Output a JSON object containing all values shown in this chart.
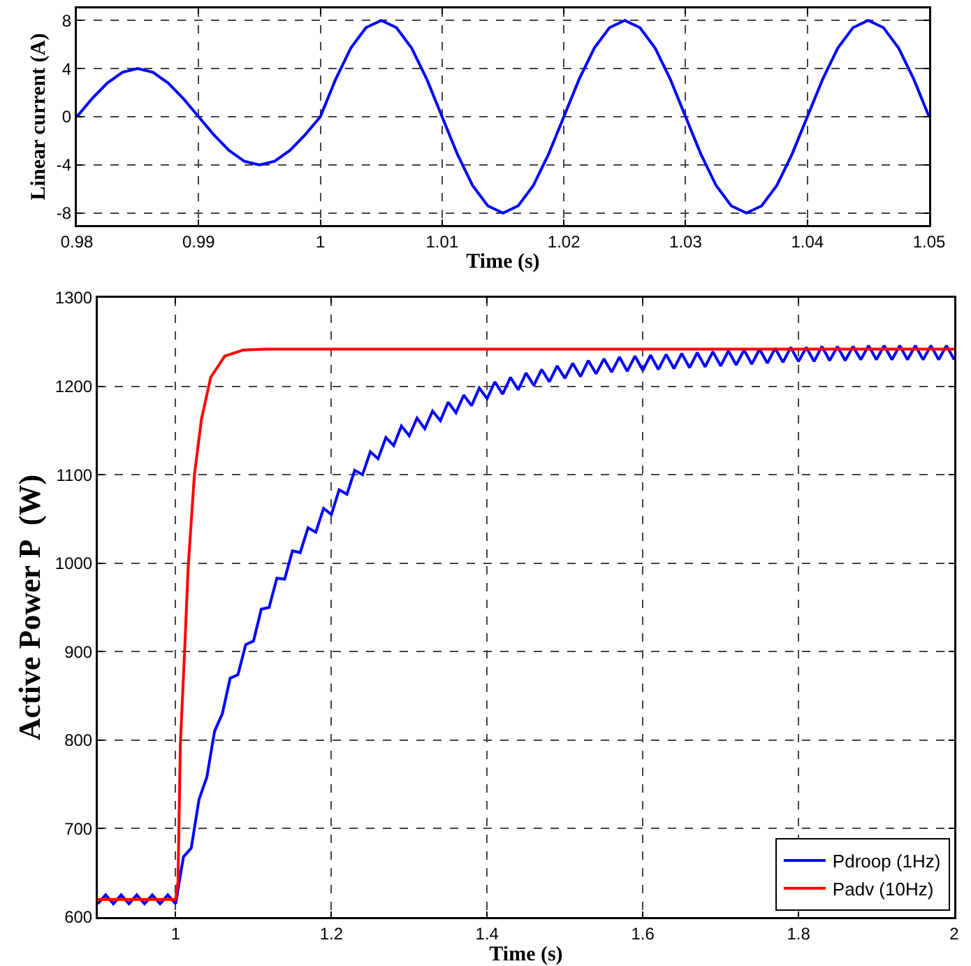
{
  "chart_data": [
    {
      "type": "line",
      "xlabel": "Time (s)",
      "ylabel": "Linear current (A)",
      "xlim": [
        0.98,
        1.05
      ],
      "xticks": [
        0.98,
        0.99,
        1,
        1.01,
        1.02,
        1.03,
        1.04,
        1.05
      ],
      "ylim": [
        -9,
        9
      ],
      "yticks": [
        -8,
        -4,
        0,
        4,
        8
      ],
      "grid": true,
      "legend": false,
      "x": [
        0.98,
        0.98125,
        0.9825,
        0.98375,
        0.985,
        0.98625,
        0.9875,
        0.98875,
        0.99,
        0.99125,
        0.9925,
        0.99375,
        0.995,
        0.99625,
        0.9975,
        0.99875,
        1,
        1.00125,
        1.0025,
        1.00375,
        1.005,
        1.00625,
        1.0075,
        1.00875,
        1.01,
        1.01125,
        1.0125,
        1.01375,
        1.015,
        1.01625,
        1.0175,
        1.01875,
        1.02,
        1.02125,
        1.0225,
        1.02375,
        1.025,
        1.02625,
        1.0275,
        1.02875,
        1.03,
        1.03125,
        1.0325,
        1.03375,
        1.035,
        1.03625,
        1.0375,
        1.03875,
        1.04,
        1.04125,
        1.0425,
        1.04375,
        1.045,
        1.04625,
        1.0475,
        1.04875,
        1.05
      ],
      "series": [
        {
          "color": "#0000ff",
          "values": [
            0,
            1.5,
            2.8,
            3.7,
            4,
            3.7,
            2.8,
            1.5,
            0,
            -1.5,
            -2.8,
            -3.7,
            -4,
            -3.7,
            -2.8,
            -1.5,
            0,
            3.1,
            5.7,
            7.4,
            8,
            7.4,
            5.7,
            3.1,
            0,
            -3.1,
            -5.7,
            -7.4,
            -8,
            -7.4,
            -5.7,
            -3.1,
            0,
            3.1,
            5.7,
            7.4,
            8,
            7.4,
            5.7,
            3.1,
            0,
            -3.1,
            -5.7,
            -7.4,
            -8,
            -7.4,
            -5.7,
            -3.1,
            0,
            3.1,
            5.7,
            7.4,
            8,
            7.4,
            5.7,
            3.1,
            0
          ]
        }
      ]
    },
    {
      "type": "line",
      "xlabel": "Time (s)",
      "ylabel": "Active Power P  (W)",
      "xlim": [
        0.9,
        2
      ],
      "xticks": [
        1,
        1.2,
        1.4,
        1.6,
        1.8,
        2
      ],
      "ylim": [
        600,
        1300
      ],
      "yticks": [
        600,
        700,
        800,
        900,
        1000,
        1100,
        1200,
        1300
      ],
      "grid": true,
      "legend": "bottom right",
      "series": [
        {
          "name": "Pdroop (1Hz)",
          "color": "#0000ff",
          "x": [
            0.9,
            0.91,
            0.92,
            0.93,
            0.94,
            0.95,
            0.96,
            0.97,
            0.98,
            0.99,
            1,
            1.01,
            1.02,
            1.03,
            1.04,
            1.05,
            1.06,
            1.07,
            1.08,
            1.09,
            1.1,
            1.11,
            1.12,
            1.13,
            1.14,
            1.15,
            1.16,
            1.17,
            1.18,
            1.19,
            1.2,
            1.21,
            1.22,
            1.23,
            1.24,
            1.25,
            1.26,
            1.27,
            1.28,
            1.29,
            1.3,
            1.31,
            1.32,
            1.33,
            1.34,
            1.35,
            1.36,
            1.37,
            1.38,
            1.39,
            1.4,
            1.41,
            1.42,
            1.43,
            1.44,
            1.45,
            1.46,
            1.47,
            1.48,
            1.49,
            1.5,
            1.51,
            1.52,
            1.53,
            1.54,
            1.55,
            1.56,
            1.57,
            1.58,
            1.59,
            1.6,
            1.61,
            1.62,
            1.63,
            1.64,
            1.65,
            1.66,
            1.67,
            1.68,
            1.69,
            1.7,
            1.71,
            1.72,
            1.73,
            1.74,
            1.75,
            1.76,
            1.77,
            1.78,
            1.79,
            1.8,
            1.81,
            1.82,
            1.83,
            1.84,
            1.85,
            1.86,
            1.87,
            1.88,
            1.89,
            1.9,
            1.91,
            1.92,
            1.93,
            1.94,
            1.95,
            1.96,
            1.97,
            1.98,
            1.99,
            2
          ],
          "values": [
            615,
            625,
            615,
            625,
            615,
            625,
            615,
            625,
            615,
            625,
            615,
            668,
            678,
            733,
            758,
            810,
            830,
            870,
            874,
            908,
            912,
            948,
            950,
            983,
            982,
            1014,
            1012,
            1040,
            1035,
            1062,
            1055,
            1083,
            1078,
            1105,
            1100,
            1126,
            1118,
            1142,
            1133,
            1155,
            1144,
            1164,
            1152,
            1172,
            1161,
            1182,
            1170,
            1190,
            1178,
            1198,
            1186,
            1205,
            1191,
            1210,
            1196,
            1215,
            1201,
            1219,
            1205,
            1223,
            1209,
            1226,
            1211,
            1229,
            1214,
            1231,
            1216,
            1233,
            1217,
            1234,
            1218,
            1235,
            1219,
            1236,
            1220,
            1237,
            1221,
            1238,
            1222,
            1239,
            1223,
            1240,
            1224,
            1241,
            1225,
            1242,
            1226,
            1243,
            1227,
            1244,
            1228,
            1244,
            1228,
            1245,
            1229,
            1245,
            1229,
            1245,
            1230,
            1246,
            1230,
            1246,
            1230,
            1246,
            1230,
            1246,
            1230,
            1246,
            1230,
            1246,
            1230
          ]
        },
        {
          "name": "Padv (10Hz)",
          "color": "#ff0000",
          "x": [
            0.9,
            1,
            1.003,
            1.006,
            1.012,
            1.016,
            1.024,
            1.033,
            1.045,
            1.063,
            1.087,
            1.116,
            2
          ],
          "values": [
            620,
            620,
            640,
            794,
            910,
            994,
            1099,
            1162,
            1210,
            1234,
            1241,
            1242,
            1242
          ]
        }
      ]
    }
  ]
}
